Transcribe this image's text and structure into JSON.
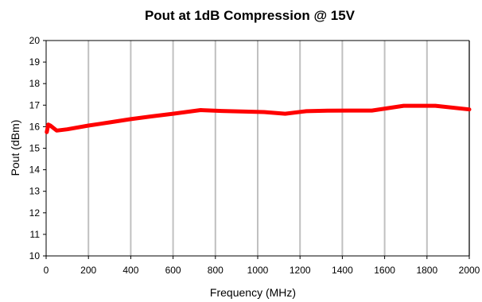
{
  "chart_data": {
    "type": "line",
    "title": "Pout at 1dB Compression @ 15V",
    "xlabel": "Frequency (MHz)",
    "ylabel": "Pout (dBm)",
    "xlim": [
      0,
      2000
    ],
    "ylim": [
      10,
      20
    ],
    "xticks": [
      0,
      200,
      400,
      600,
      800,
      1000,
      1200,
      1400,
      1600,
      1800,
      2000
    ],
    "yticks": [
      10,
      11,
      12,
      13,
      14,
      15,
      16,
      17,
      18,
      19,
      20
    ],
    "grid": "vertical",
    "legend": "none",
    "series": [
      {
        "color": "#ff0000",
        "x": [
          3,
          10,
          20,
          50,
          100,
          200,
          300,
          400,
          500,
          600,
          730,
          830,
          1030,
          1130,
          1230,
          1330,
          1430,
          1540,
          1690,
          1840,
          2000
        ],
        "y": [
          15.75,
          16.1,
          16.05,
          15.82,
          15.88,
          16.05,
          16.2,
          16.35,
          16.48,
          16.6,
          16.77,
          16.73,
          16.68,
          16.6,
          16.72,
          16.74,
          16.75,
          16.75,
          16.97,
          16.97,
          16.8
        ]
      }
    ]
  }
}
